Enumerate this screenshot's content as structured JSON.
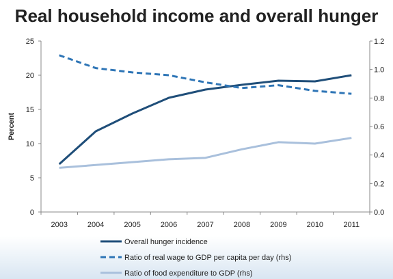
{
  "title": "Real household income and overall hunger",
  "chart_data": {
    "type": "line",
    "title": "Real household income and overall hunger",
    "x": [
      "2003",
      "2004",
      "2005",
      "2006",
      "2007",
      "2008",
      "2009",
      "2010",
      "2011"
    ],
    "ylabel": "Percent",
    "ylim": [
      0,
      25
    ],
    "yticks": [
      "0",
      "5",
      "10",
      "15",
      "20",
      "25"
    ],
    "y2lim": [
      0.0,
      1.2
    ],
    "y2ticks": [
      "0.0",
      "0.2",
      "0.4",
      "0.6",
      "0.8",
      "1.0",
      "1.2"
    ],
    "legend_position": "bottom",
    "grid": false,
    "series": [
      {
        "name": "Overall hunger incidence",
        "axis": "left",
        "style": "solid",
        "color": "#1f4e79",
        "values": [
          7.0,
          11.8,
          14.4,
          16.7,
          17.9,
          18.6,
          19.2,
          19.1,
          20.0
        ]
      },
      {
        "name": "Ratio of real wage to GDP per capita per day (rhs)",
        "axis": "right",
        "style": "dashed",
        "color": "#2e75b6",
        "values": [
          1.1,
          1.01,
          0.98,
          0.96,
          0.91,
          0.87,
          0.89,
          0.85,
          0.83
        ]
      },
      {
        "name": "Ratio of food expenditure to GDP (rhs)",
        "axis": "right",
        "style": "solid",
        "color": "#a9c0dc",
        "values": [
          0.31,
          0.33,
          0.35,
          0.37,
          0.38,
          0.44,
          0.49,
          0.48,
          0.52
        ]
      }
    ]
  }
}
